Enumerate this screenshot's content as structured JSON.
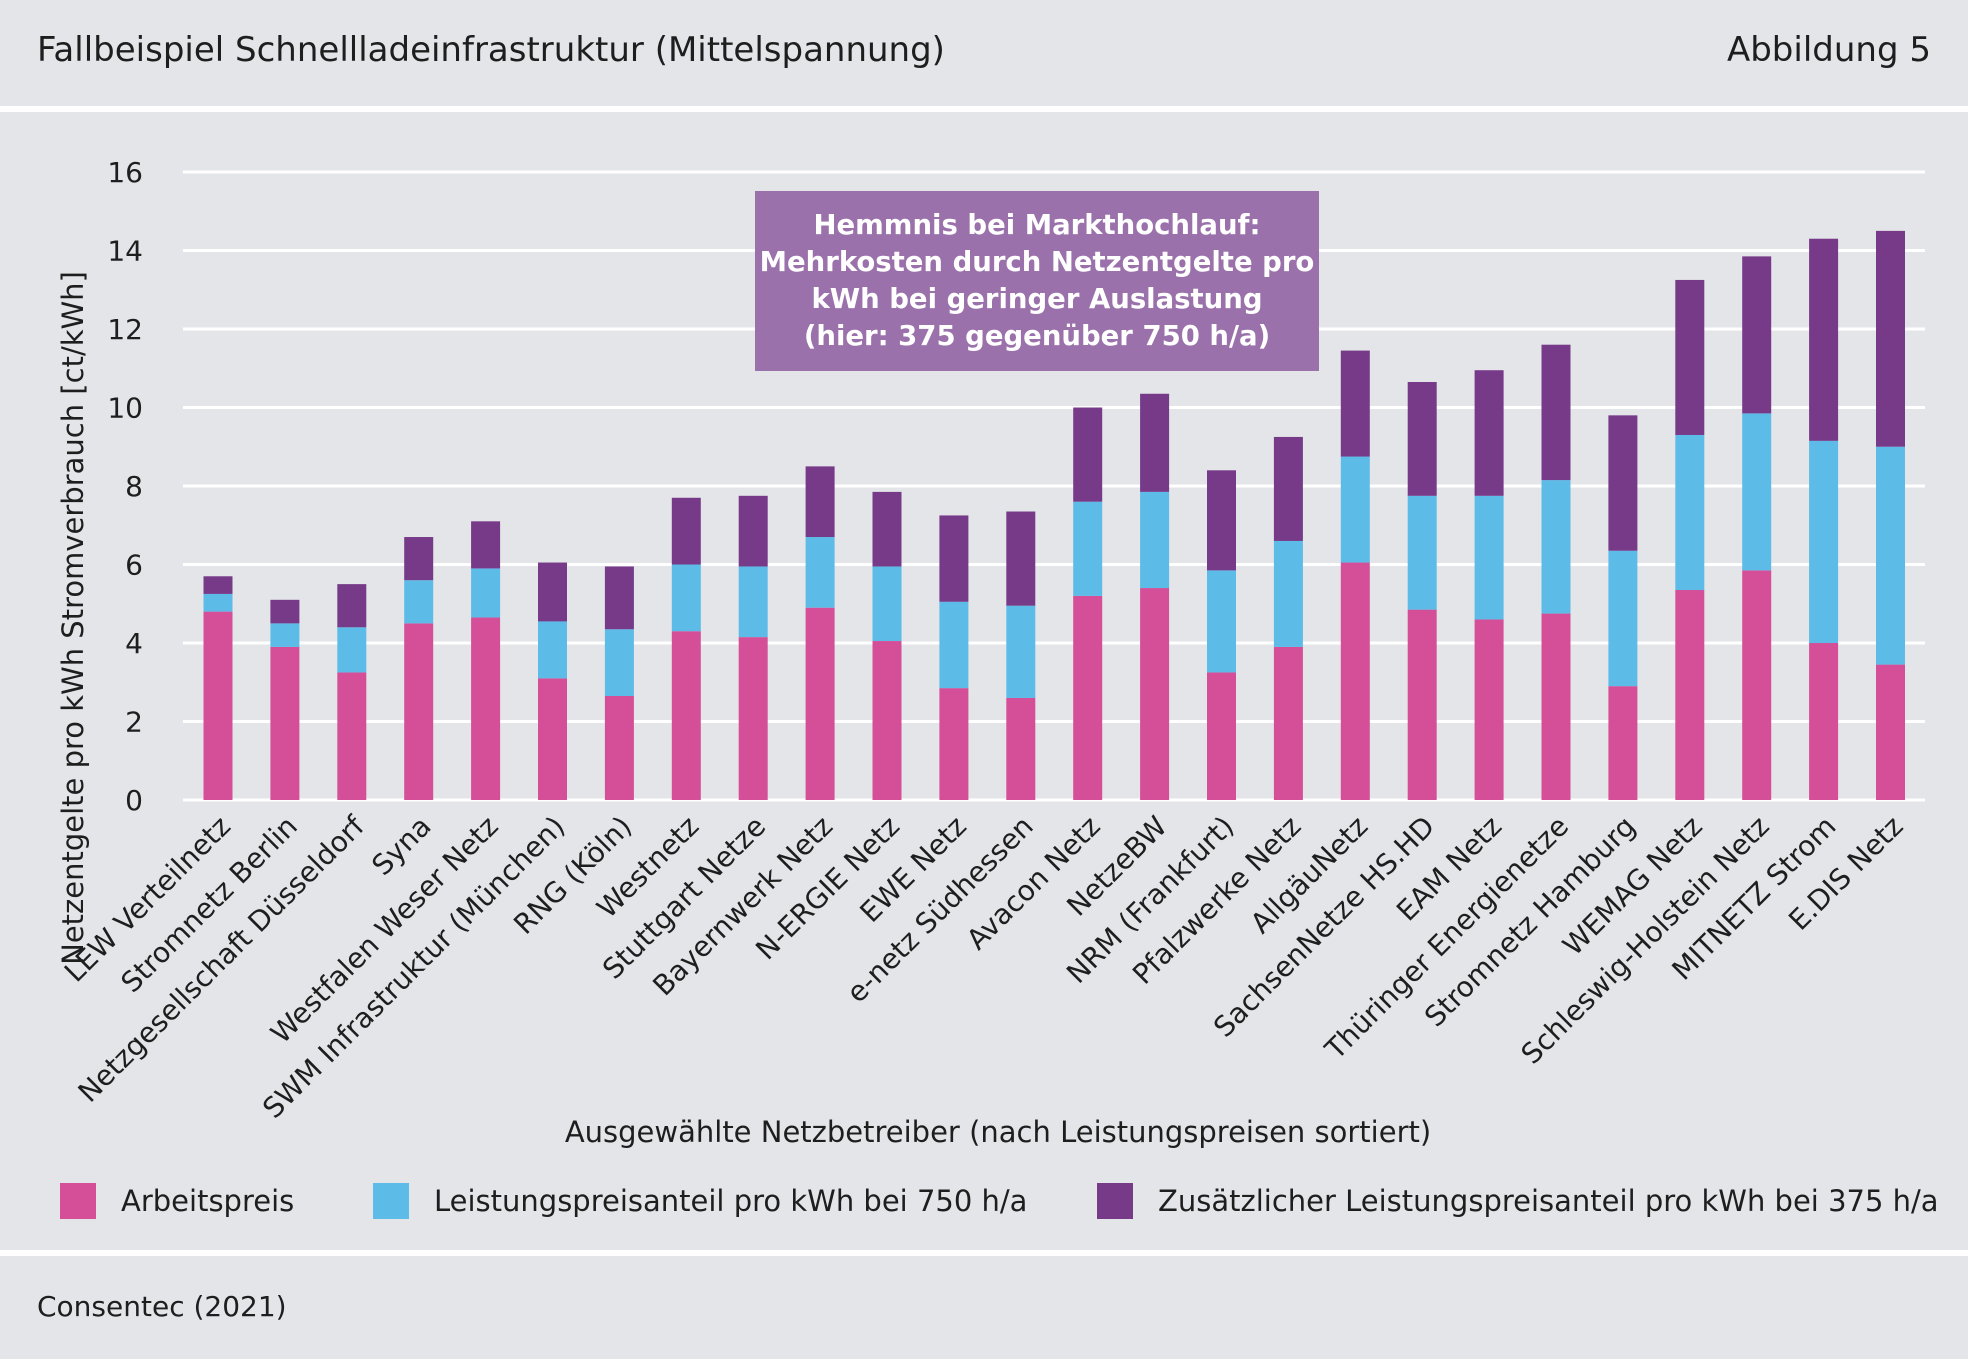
{
  "header": {
    "title": "Fallbeispiel Schnellladeinfrastruktur (Mittelspannung)",
    "figure_label": "Abbildung 5"
  },
  "footer": {
    "source": "Consentec (2021)"
  },
  "callout": {
    "lines": [
      "Hemmnis bei Markthochlauf:",
      "Mehrkosten durch Netzentgelte pro",
      "kWh bei geringer Auslastung",
      "(hier: 375 gegenüber 750 h/a)"
    ]
  },
  "colors": {
    "arbeitspreis": "#d44f97",
    "leistung750": "#5dbbe8",
    "zusatz375": "#763a89",
    "callout_bg": "#9b71ab",
    "background": "#e4e5e9",
    "gridline": "#ffffff"
  },
  "chart_data": {
    "type": "bar",
    "stacked": true,
    "xlabel": "Ausgewählte Netzbetreiber (nach Leistungspreisen sortiert)",
    "ylabel": "Netzentgelte pro kWh Stromverbrauch [ct/kWh]",
    "ylim": [
      0,
      16
    ],
    "yticks": [
      0,
      2,
      4,
      6,
      8,
      10,
      12,
      14,
      16
    ],
    "grid": true,
    "legend_position": "bottom",
    "categories": [
      "LEW Verteilnetz",
      "Stromnetz Berlin",
      "Netzgesellschaft Düsseldorf",
      "Syna",
      "Westfalen Weser Netz",
      "SWM Infrastruktur (München)",
      "RNG (Köln)",
      "Westnetz",
      "Stuttgart Netze",
      "Bayernwerk Netz",
      "N-ERGIE Netz",
      "EWE Netz",
      "e-netz Südhessen",
      "Avacon Netz",
      "NetzeBW",
      "NRM (Frankfurt)",
      "Pfalzwerke Netz",
      "AllgäuNetz",
      "SachsenNetze HS.HD",
      "EAM Netz",
      "Thüringer Energienetze",
      "Stromnetz Hamburg",
      "WEMAG Netz",
      "Schleswig-Holstein Netz",
      "MITNETZ Strom",
      "E.DIS Netz"
    ],
    "series": [
      {
        "name": "Arbeitspreis",
        "color": "#d44f97",
        "values": [
          4.8,
          3.9,
          3.25,
          4.5,
          4.65,
          3.1,
          2.65,
          4.3,
          4.15,
          4.9,
          4.05,
          2.85,
          2.6,
          5.2,
          5.4,
          3.25,
          3.9,
          6.05,
          4.85,
          4.6,
          4.75,
          2.9,
          5.35,
          5.85,
          4.0,
          3.45
        ]
      },
      {
        "name": "Leistungspreisanteil pro kWh bei 750 h/a",
        "color": "#5dbbe8",
        "values": [
          0.45,
          0.6,
          1.15,
          1.1,
          1.25,
          1.45,
          1.7,
          1.7,
          1.8,
          1.8,
          1.9,
          2.2,
          2.35,
          2.4,
          2.45,
          2.6,
          2.7,
          2.7,
          2.9,
          3.15,
          3.4,
          3.45,
          3.95,
          4.0,
          5.15,
          5.55
        ]
      },
      {
        "name": "Zusätzlicher Leistungspreisanteil pro kWh bei 375 h/a",
        "color": "#763a89",
        "values": [
          0.45,
          0.6,
          1.1,
          1.1,
          1.2,
          1.5,
          1.6,
          1.7,
          1.8,
          1.8,
          1.9,
          2.2,
          2.4,
          2.4,
          2.5,
          2.55,
          2.65,
          2.7,
          2.9,
          3.2,
          3.45,
          3.45,
          3.95,
          4.0,
          5.15,
          5.5
        ]
      }
    ]
  }
}
